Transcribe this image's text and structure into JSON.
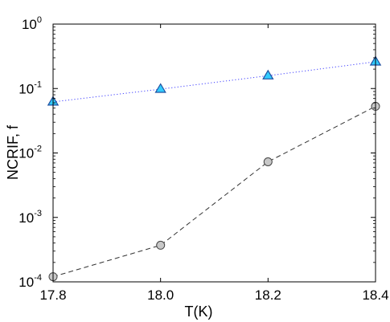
{
  "chart_data": {
    "type": "line",
    "xlabel": "T(K)",
    "ylabel": "NCRIF, f",
    "xlim": [
      17.8,
      18.4
    ],
    "ylim": [
      0.0001,
      1
    ],
    "yscale": "log",
    "xticks": [
      {
        "value": 17.8,
        "label": "17.8"
      },
      {
        "value": 18.0,
        "label": "18.0"
      },
      {
        "value": 18.2,
        "label": "18.2"
      },
      {
        "value": 18.4,
        "label": "18.4"
      }
    ],
    "yticks": [
      {
        "value": 1,
        "base": "10",
        "exp": "0"
      },
      {
        "value": 0.1,
        "base": "10",
        "exp": "-1"
      },
      {
        "value": 0.01,
        "base": "10",
        "exp": "-2"
      },
      {
        "value": 0.001,
        "base": "10",
        "exp": "-3"
      },
      {
        "value": 0.0001,
        "base": "10",
        "exp": "-4"
      }
    ],
    "grid": false,
    "legend": false,
    "series": [
      {
        "x": [
          17.8,
          18.0,
          18.2,
          18.4
        ],
        "y": [
          0.062,
          0.098,
          0.158,
          0.26
        ],
        "marker": "triangle",
        "line_style": "dotted",
        "line_color": "#3f3fff",
        "marker_fill": "#33ccff",
        "marker_edge": "#2050a0"
      },
      {
        "x": [
          17.8,
          18.0,
          18.2,
          18.4
        ],
        "y": [
          0.00012,
          0.00037,
          0.0073,
          0.053
        ],
        "marker": "circle",
        "line_style": "dashed",
        "line_color": "#333333",
        "marker_fill": "#c8c8c8",
        "marker_edge": "#444444"
      }
    ]
  }
}
